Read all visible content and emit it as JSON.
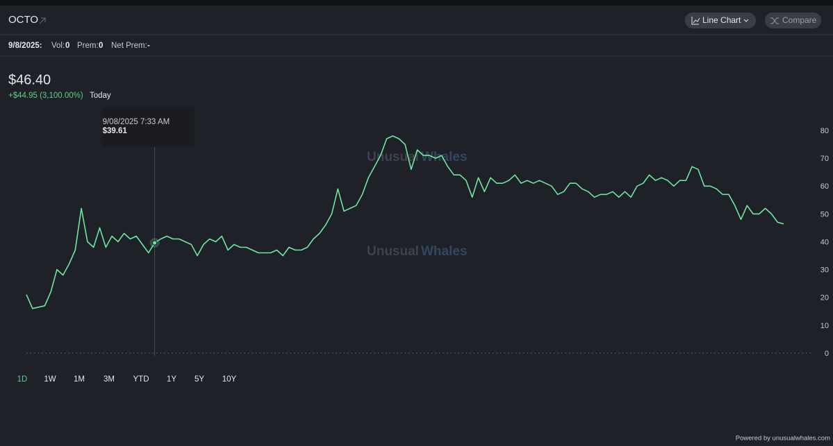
{
  "header": {
    "ticker": "OCTO",
    "chart_type_button": "Line Chart",
    "compare_button": "Compare"
  },
  "stats": {
    "date": "9/8/2025:",
    "vol_label": "Vol:",
    "vol": "0",
    "prem_label": "Prem:",
    "prem": "0",
    "net_prem_label": "Net Prem:",
    "net_prem": "-"
  },
  "price": {
    "value": "$46.40",
    "change": "+$44.95 (3,100.00%)",
    "period": "Today"
  },
  "tooltip": {
    "time": "9/08/2025 7:33 AM",
    "price": "$39.61",
    "index": 21
  },
  "watermark": {
    "word1": "Unusual",
    "word2": "Whales"
  },
  "ranges": [
    "1D",
    "1W",
    "1M",
    "3M",
    "YTD",
    "1Y",
    "5Y",
    "10Y"
  ],
  "footer": "Powered by unusualwhales.com",
  "chart_data": {
    "type": "line",
    "color": "#6ee7a0",
    "values": [
      21,
      16,
      16.5,
      17,
      22,
      30,
      28,
      32,
      37,
      52,
      40,
      38,
      45,
      38,
      42,
      40,
      43,
      41,
      42,
      39,
      36,
      39.61,
      41,
      42,
      41,
      41,
      40,
      39,
      35,
      39,
      41,
      40,
      42,
      37,
      39,
      38,
      38,
      37,
      36,
      36,
      36,
      37,
      35,
      38,
      37,
      37,
      38,
      41,
      43,
      46,
      50,
      59,
      51,
      52,
      53,
      57,
      63,
      67,
      71,
      77,
      78,
      77,
      75,
      66,
      73,
      71,
      71,
      70,
      71,
      67,
      64,
      64,
      62,
      56,
      63,
      58,
      63,
      61,
      61,
      62,
      64,
      61,
      62,
      61,
      62,
      61,
      60,
      57,
      58,
      61,
      61,
      59,
      58,
      56,
      57,
      57,
      58,
      56,
      58,
      56,
      60,
      61,
      64,
      62,
      63,
      62,
      60,
      62,
      62,
      67,
      66,
      60,
      60,
      59,
      57,
      57,
      53,
      48,
      53,
      50,
      50,
      52,
      50,
      47,
      46.4
    ],
    "ylim": [
      0,
      80
    ],
    "yticks": [
      0,
      10,
      20,
      30,
      40,
      50,
      60,
      70,
      80
    ],
    "grid": false
  }
}
